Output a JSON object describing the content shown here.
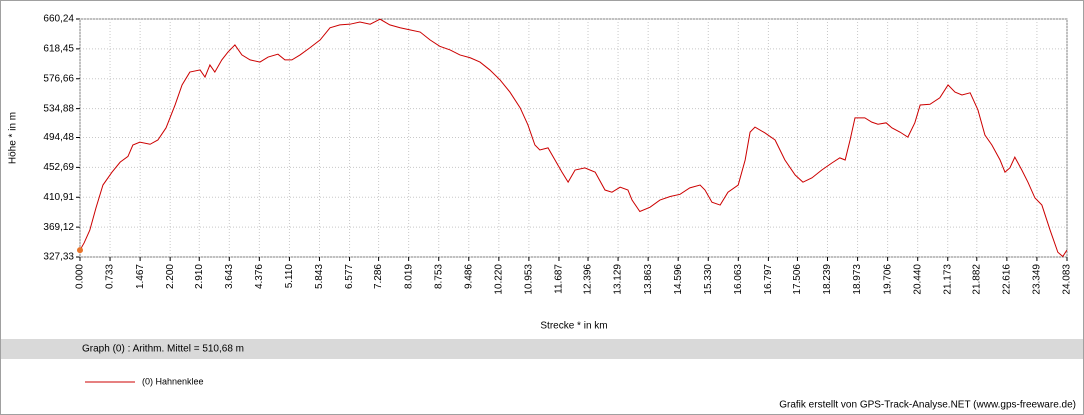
{
  "chart_data": {
    "type": "line",
    "x_label": "Strecke *  in  km",
    "y_label": "Höhe *  in  m",
    "summary": "Graph (0) :  Arithm. Mittel = 510,68 m",
    "credit": "Grafik erstellt von GPS-Track-Analyse.NET (www.gps-freeware.de)",
    "grid": true,
    "xlim": [
      0,
      24.083
    ],
    "ylim": [
      327.33,
      660.24
    ],
    "xticks": [
      {
        "value": 0,
        "label": "0.000"
      },
      {
        "value": 0.733,
        "label": "0.733"
      },
      {
        "value": 1.467,
        "label": "1.467"
      },
      {
        "value": 2.2,
        "label": "2.200"
      },
      {
        "value": 2.91,
        "label": "2.910"
      },
      {
        "value": 3.643,
        "label": "3.643"
      },
      {
        "value": 4.376,
        "label": "4.376"
      },
      {
        "value": 5.11,
        "label": "5.110"
      },
      {
        "value": 5.843,
        "label": "5.843"
      },
      {
        "value": 6.577,
        "label": "6.577"
      },
      {
        "value": 7.286,
        "label": "7.286"
      },
      {
        "value": 8.019,
        "label": "8.019"
      },
      {
        "value": 8.753,
        "label": "8.753"
      },
      {
        "value": 9.486,
        "label": "9.486"
      },
      {
        "value": 10.22,
        "label": "10.220"
      },
      {
        "value": 10.953,
        "label": "10.953"
      },
      {
        "value": 11.687,
        "label": "11.687"
      },
      {
        "value": 12.396,
        "label": "12.396"
      },
      {
        "value": 13.129,
        "label": "13.129"
      },
      {
        "value": 13.863,
        "label": "13.863"
      },
      {
        "value": 14.596,
        "label": "14.596"
      },
      {
        "value": 15.33,
        "label": "15.330"
      },
      {
        "value": 16.063,
        "label": "16.063"
      },
      {
        "value": 16.797,
        "label": "16.797"
      },
      {
        "value": 17.506,
        "label": "17.506"
      },
      {
        "value": 18.239,
        "label": "18.239"
      },
      {
        "value": 18.973,
        "label": "18.973"
      },
      {
        "value": 19.706,
        "label": "19.706"
      },
      {
        "value": 20.44,
        "label": "20.440"
      },
      {
        "value": 21.173,
        "label": "21.173"
      },
      {
        "value": 21.882,
        "label": "21.882"
      },
      {
        "value": 22.616,
        "label": "22.616"
      },
      {
        "value": 23.349,
        "label": "23.349"
      },
      {
        "value": 24.083,
        "label": "24.083"
      }
    ],
    "yticks": [
      {
        "value": 327.33,
        "label": "327,33"
      },
      {
        "value": 369.12,
        "label": "369,12"
      },
      {
        "value": 410.91,
        "label": "410,91"
      },
      {
        "value": 452.69,
        "label": "452,69"
      },
      {
        "value": 494.48,
        "label": "494,48"
      },
      {
        "value": 534.88,
        "label": "534,88"
      },
      {
        "value": 576.66,
        "label": "576,66"
      },
      {
        "value": 618.45,
        "label": "618,45"
      },
      {
        "value": 660.24,
        "label": "660,24"
      }
    ],
    "x": [
      0,
      0.1,
      0.24,
      0.39,
      0.56,
      0.78,
      0.98,
      1.17,
      1.29,
      1.46,
      1.71,
      1.9,
      2.1,
      2.32,
      2.49,
      2.68,
      2.93,
      3.05,
      3.17,
      3.29,
      3.46,
      3.61,
      3.78,
      3.95,
      4.15,
      4.39,
      4.59,
      4.83,
      5.0,
      5.17,
      5.37,
      5.61,
      5.86,
      6.1,
      6.34,
      6.59,
      6.83,
      7.08,
      7.32,
      7.56,
      7.81,
      8.05,
      8.3,
      8.54,
      8.78,
      9.03,
      9.27,
      9.52,
      9.76,
      10.0,
      10.25,
      10.49,
      10.74,
      10.93,
      11.1,
      11.22,
      11.42,
      11.59,
      11.76,
      11.91,
      12.08,
      12.32,
      12.57,
      12.81,
      12.98,
      13.18,
      13.37,
      13.47,
      13.66,
      13.91,
      14.15,
      14.4,
      14.64,
      14.88,
      15.13,
      15.25,
      15.42,
      15.62,
      15.81,
      16.06,
      16.23,
      16.35,
      16.47,
      16.71,
      16.96,
      17.2,
      17.45,
      17.64,
      17.86,
      18.1,
      18.35,
      18.54,
      18.67,
      18.79,
      18.91,
      19.15,
      19.32,
      19.47,
      19.67,
      19.81,
      20.01,
      20.2,
      20.37,
      20.5,
      20.74,
      20.98,
      21.18,
      21.35,
      21.52,
      21.72,
      21.91,
      22.08,
      22.25,
      22.45,
      22.57,
      22.69,
      22.81,
      22.98,
      23.13,
      23.3,
      23.47,
      23.67,
      23.86,
      23.98,
      24.08
    ],
    "series": [
      {
        "name": "(0) Hahnenklee",
        "color": "#cc0000",
        "values": [
          337,
          347,
          365,
          396,
          428,
          446,
          460,
          468,
          484,
          488,
          485,
          491,
          508,
          540,
          568,
          586,
          589,
          579,
          596,
          586,
          603,
          614,
          624,
          610,
          603,
          600,
          607,
          611,
          603,
          603,
          610,
          620,
          631,
          648,
          652,
          653,
          656,
          653,
          660,
          652,
          648,
          645,
          642,
          631,
          622,
          617,
          610,
          606,
          600,
          589,
          575,
          558,
          536,
          512,
          484,
          477,
          480,
          463,
          446,
          432,
          449,
          452,
          446,
          421,
          418,
          425,
          421,
          407,
          391,
          397,
          407,
          412,
          415,
          424,
          428,
          421,
          404,
          400,
          418,
          428,
          463,
          502,
          509,
          501,
          491,
          463,
          442,
          432,
          438,
          449,
          459,
          466,
          463,
          491,
          522,
          522,
          516,
          513,
          515,
          508,
          502,
          495,
          515,
          540,
          541,
          550,
          568,
          558,
          554,
          557,
          533,
          498,
          484,
          463,
          446,
          452,
          467,
          449,
          432,
          410,
          400,
          365,
          334,
          328,
          337
        ]
      }
    ]
  }
}
